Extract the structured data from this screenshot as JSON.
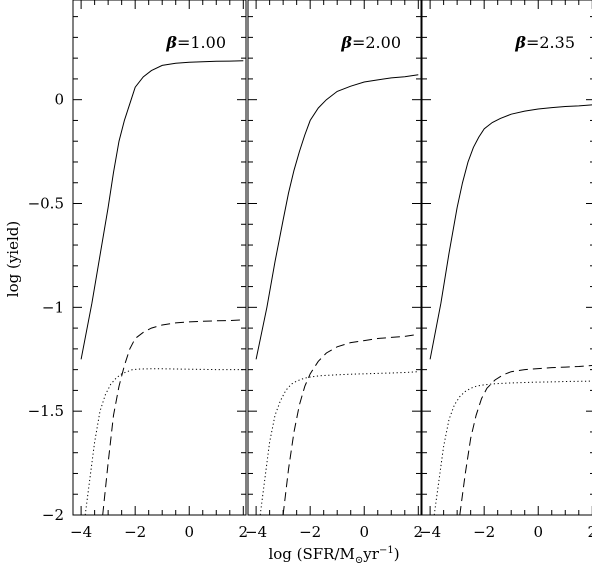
{
  "chart_data": {
    "type": "line",
    "xlabel_parts": {
      "prefix": "log (SFR/M",
      "sub": "⊙",
      "mid": "yr",
      "sup": "−1",
      "suffix": ")"
    },
    "ylabel": "log (yield)",
    "xlim": [
      -4.3,
      2.1
    ],
    "ylim": [
      -2.0,
      0.48
    ],
    "y_ticks": [
      0,
      -0.5,
      -1,
      -1.5,
      -2
    ],
    "y_tick_labels": [
      "0",
      "−0.5",
      "−1",
      "−1.5",
      "−2"
    ],
    "x_ticks": [
      -4,
      -2,
      0,
      2
    ],
    "x_tick_labels": [
      "−4",
      "−2",
      "0",
      "2"
    ],
    "panels": [
      {
        "label_sym": "β",
        "label_val": "=1.00",
        "series": [
          {
            "style": "solid",
            "x": [
              -4.0,
              -3.6,
              -3.3,
              -3.0,
              -2.8,
              -2.6,
              -2.4,
              -2.2,
              -2.0,
              -1.7,
              -1.4,
              -1.0,
              -0.5,
              0.0,
              0.5,
              1.0,
              1.5,
              2.0
            ],
            "y": [
              -1.25,
              -0.98,
              -0.75,
              -0.52,
              -0.35,
              -0.2,
              -0.1,
              -0.02,
              0.06,
              0.11,
              0.14,
              0.165,
              0.175,
              0.18,
              0.183,
              0.185,
              0.186,
              0.187
            ]
          },
          {
            "style": "dashed",
            "x": [
              -3.2,
              -3.0,
              -2.8,
              -2.6,
              -2.4,
              -2.2,
              -2.0,
              -1.7,
              -1.4,
              -1.0,
              -0.5,
              0.0,
              0.5,
              1.0,
              1.5,
              2.0
            ],
            "y": [
              -2.0,
              -1.75,
              -1.52,
              -1.38,
              -1.28,
              -1.2,
              -1.15,
              -1.12,
              -1.1,
              -1.085,
              -1.075,
              -1.07,
              -1.067,
              -1.065,
              -1.064,
              -1.06
            ]
          },
          {
            "style": "dotted",
            "x": [
              -3.85,
              -3.7,
              -3.5,
              -3.3,
              -3.1,
              -2.9,
              -2.7,
              -2.5,
              -2.3,
              -2.1,
              -1.8,
              -1.5,
              -1.0,
              -0.5,
              0.0,
              0.5,
              1.0,
              1.5,
              2.0
            ],
            "y": [
              -2.0,
              -1.85,
              -1.65,
              -1.5,
              -1.42,
              -1.37,
              -1.34,
              -1.32,
              -1.31,
              -1.3,
              -1.297,
              -1.296,
              -1.296,
              -1.297,
              -1.298,
              -1.299,
              -1.3,
              -1.3,
              -1.3
            ]
          }
        ]
      },
      {
        "label_sym": "β",
        "label_val": "=2.00",
        "series": [
          {
            "style": "solid",
            "x": [
              -4.0,
              -3.6,
              -3.3,
              -3.0,
              -2.8,
              -2.6,
              -2.4,
              -2.2,
              -2.0,
              -1.7,
              -1.4,
              -1.0,
              -0.5,
              0.0,
              0.5,
              1.0,
              1.5,
              2.0
            ],
            "y": [
              -1.25,
              -1.0,
              -0.78,
              -0.58,
              -0.45,
              -0.34,
              -0.25,
              -0.17,
              -0.1,
              -0.04,
              0.0,
              0.04,
              0.065,
              0.085,
              0.095,
              0.105,
              0.11,
              0.12
            ]
          },
          {
            "style": "dashed",
            "x": [
              -3.0,
              -2.8,
              -2.6,
              -2.4,
              -2.2,
              -2.0,
              -1.7,
              -1.4,
              -1.0,
              -0.5,
              0.0,
              0.5,
              1.0,
              1.5,
              2.0
            ],
            "y": [
              -2.0,
              -1.78,
              -1.6,
              -1.47,
              -1.38,
              -1.32,
              -1.26,
              -1.22,
              -1.19,
              -1.17,
              -1.16,
              -1.15,
              -1.145,
              -1.14,
              -1.13
            ]
          },
          {
            "style": "dotted",
            "x": [
              -3.85,
              -3.7,
              -3.5,
              -3.3,
              -3.1,
              -2.9,
              -2.7,
              -2.5,
              -2.3,
              -2.1,
              -1.8,
              -1.5,
              -1.0,
              -0.5,
              0.0,
              0.5,
              1.0,
              1.5,
              2.0
            ],
            "y": [
              -2.0,
              -1.85,
              -1.65,
              -1.52,
              -1.45,
              -1.4,
              -1.37,
              -1.355,
              -1.345,
              -1.338,
              -1.332,
              -1.328,
              -1.325,
              -1.322,
              -1.32,
              -1.318,
              -1.316,
              -1.314,
              -1.31
            ]
          }
        ]
      },
      {
        "label_sym": "β",
        "label_val": "=2.35",
        "series": [
          {
            "style": "solid",
            "x": [
              -4.0,
              -3.6,
              -3.3,
              -3.0,
              -2.8,
              -2.6,
              -2.4,
              -2.2,
              -2.0,
              -1.7,
              -1.4,
              -1.0,
              -0.5,
              0.0,
              0.5,
              1.0,
              1.5,
              2.0
            ],
            "y": [
              -1.25,
              -0.98,
              -0.74,
              -0.52,
              -0.4,
              -0.3,
              -0.23,
              -0.18,
              -0.14,
              -0.11,
              -0.09,
              -0.07,
              -0.055,
              -0.045,
              -0.038,
              -0.033,
              -0.03,
              -0.025
            ]
          },
          {
            "style": "dashed",
            "x": [
              -2.9,
              -2.7,
              -2.5,
              -2.3,
              -2.1,
              -1.9,
              -1.6,
              -1.3,
              -1.0,
              -0.5,
              0.0,
              0.5,
              1.0,
              1.5,
              2.0
            ],
            "y": [
              -2.0,
              -1.8,
              -1.63,
              -1.52,
              -1.44,
              -1.39,
              -1.35,
              -1.325,
              -1.31,
              -1.3,
              -1.295,
              -1.29,
              -1.288,
              -1.285,
              -1.28
            ]
          },
          {
            "style": "dotted",
            "x": [
              -3.85,
              -3.7,
              -3.5,
              -3.3,
              -3.1,
              -2.9,
              -2.7,
              -2.5,
              -2.3,
              -2.1,
              -1.8,
              -1.5,
              -1.0,
              -0.5,
              0.0,
              0.5,
              1.0,
              1.5,
              2.0
            ],
            "y": [
              -2.0,
              -1.86,
              -1.67,
              -1.54,
              -1.47,
              -1.43,
              -1.405,
              -1.39,
              -1.38,
              -1.375,
              -1.37,
              -1.367,
              -1.364,
              -1.362,
              -1.36,
              -1.359,
              -1.357,
              -1.356,
              -1.355
            ]
          }
        ]
      }
    ]
  }
}
